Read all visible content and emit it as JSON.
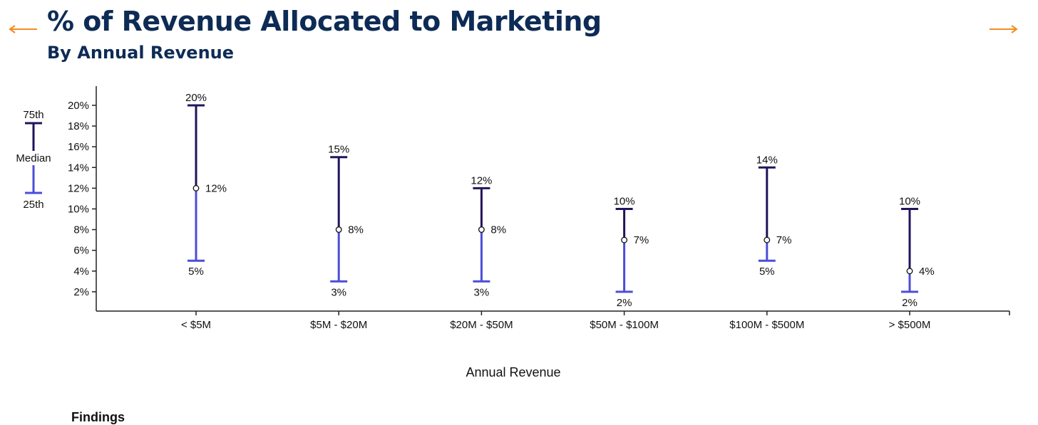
{
  "header": {
    "title": "% of Revenue Allocated to Marketing",
    "subtitle": "By Annual Revenue"
  },
  "nav": {
    "prev_icon": "arrow-left-icon",
    "next_icon": "arrow-right-icon",
    "color": "#f28c1e"
  },
  "legend": {
    "top": "75th",
    "middle": "Median",
    "bottom": "25th"
  },
  "colors": {
    "upper": "#23135c",
    "lower": "#4b4ed6",
    "axis": "#222222",
    "text": "#111111"
  },
  "chart_data": {
    "type": "range",
    "xlabel": "Annual Revenue",
    "ylabel": "",
    "ylim": [
      0,
      22
    ],
    "yticks": [
      2,
      4,
      6,
      8,
      10,
      12,
      14,
      16,
      18,
      20
    ],
    "ytick_labels": [
      "2%",
      "4%",
      "6%",
      "8%",
      "10%",
      "12%",
      "14%",
      "16%",
      "18%",
      "20%"
    ],
    "categories": [
      "< $5M",
      "$5M - $20M",
      "$20M - $50M",
      "$50M - $100M",
      "$100M - $500M",
      "> $500M"
    ],
    "p75": [
      20,
      15,
      12,
      10,
      14,
      10
    ],
    "median": [
      12,
      8,
      8,
      7,
      7,
      4
    ],
    "p25": [
      5,
      3,
      3,
      2,
      5,
      2
    ],
    "p75_labels": [
      "20%",
      "15%",
      "12%",
      "10%",
      "14%",
      "10%"
    ],
    "median_labels": [
      "12%",
      "8%",
      "8%",
      "7%",
      "7%",
      "4%"
    ],
    "p25_labels": [
      "5%",
      "3%",
      "3%",
      "2%",
      "5%",
      "2%"
    ]
  },
  "footer": {
    "findings_label": "Findings"
  }
}
